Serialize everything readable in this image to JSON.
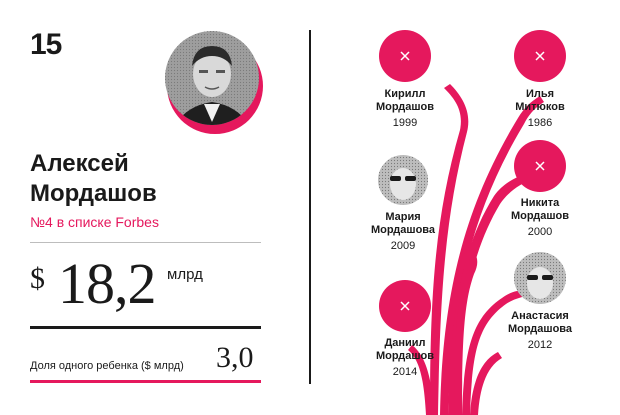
{
  "rank": "15",
  "person": {
    "first_name": "Алексей",
    "last_name": "Мордашов",
    "rank_label": "№4 в списке Forbes"
  },
  "fortune": {
    "currency": "$",
    "amount": "18,2",
    "unit": "млрд"
  },
  "child_share": {
    "label": "Доля одного ребенка ($ млрд)",
    "value": "3,0"
  },
  "children": [
    {
      "first": "Кирилл",
      "last": "Мордашов",
      "year": "1999",
      "photo": "placeholder-x-icon"
    },
    {
      "first": "Илья",
      "last": "Митюков",
      "year": "1986",
      "photo": "placeholder-x-icon"
    },
    {
      "first": "Мария",
      "last": "Мордашова",
      "year": "2009",
      "photo": "child-portrait"
    },
    {
      "first": "Никита",
      "last": "Мордашов",
      "year": "2000",
      "photo": "placeholder-x-icon"
    },
    {
      "first": "Анастасия",
      "last": "Мордашова",
      "year": "2012",
      "photo": "child-portrait"
    },
    {
      "first": "Даниил",
      "last": "Мордашов",
      "year": "2014",
      "photo": "placeholder-x-icon"
    }
  ],
  "colors": {
    "accent": "#e5185d",
    "text": "#1a1a1a",
    "rule": "#bdbdbd"
  }
}
